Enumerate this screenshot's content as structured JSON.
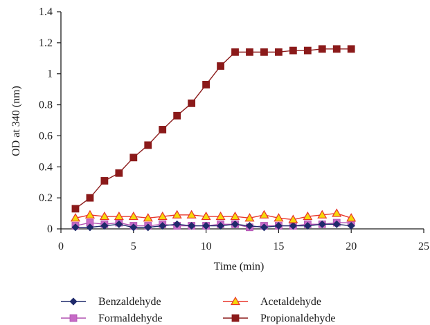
{
  "chart_data": {
    "type": "line",
    "xlabel": "Time (min)",
    "ylabel": "OD at 340 (nm)",
    "xlim": [
      0,
      25
    ],
    "ylim": [
      0,
      1.4
    ],
    "xticks": [
      0,
      5,
      10,
      15,
      20,
      25
    ],
    "yticks": [
      0,
      0.2,
      0.4,
      0.6,
      0.8,
      1,
      1.2,
      1.4
    ],
    "grid": false,
    "legend_position": "bottom",
    "x": [
      1,
      2,
      3,
      4,
      5,
      6,
      7,
      8,
      9,
      10,
      11,
      12,
      13,
      14,
      15,
      16,
      17,
      18,
      19,
      20
    ],
    "series": [
      {
        "name": "Benzaldehyde",
        "marker": "diamond",
        "line_color": "#1f2a6b",
        "marker_color": "#1f2a6b",
        "values": [
          0.01,
          0.01,
          0.02,
          0.03,
          0.01,
          0.01,
          0.02,
          0.03,
          0.02,
          0.02,
          0.02,
          0.03,
          0.02,
          0.01,
          0.02,
          0.02,
          0.02,
          0.03,
          0.03,
          0.02
        ]
      },
      {
        "name": "Acetaldehyde",
        "marker": "triangle",
        "line_color": "#e8352a",
        "marker_color": "#f5d90a",
        "marker_stroke": "#e8352a",
        "values": [
          0.07,
          0.09,
          0.08,
          0.08,
          0.08,
          0.07,
          0.08,
          0.09,
          0.09,
          0.08,
          0.08,
          0.08,
          0.07,
          0.09,
          0.07,
          0.06,
          0.08,
          0.09,
          0.1,
          0.07
        ]
      },
      {
        "name": "Formaldehyde",
        "marker": "square",
        "line_color": "#b050b0",
        "marker_color": "#c66ac6",
        "values": [
          0.02,
          0.04,
          0.03,
          0.04,
          0.02,
          0.02,
          0.03,
          0.02,
          0.02,
          0.02,
          0.03,
          0.03,
          0.01,
          0.02,
          0.02,
          0.02,
          0.03,
          0.03,
          0.04,
          0.04
        ]
      },
      {
        "name": "Propionaldehyde",
        "marker": "square",
        "line_color": "#8b1a1a",
        "marker_color": "#8b1a1a",
        "values": [
          0.13,
          0.2,
          0.31,
          0.36,
          0.46,
          0.54,
          0.64,
          0.73,
          0.81,
          0.93,
          1.05,
          1.14,
          1.14,
          1.14,
          1.14,
          1.15,
          1.15,
          1.16,
          1.16,
          1.16
        ]
      }
    ]
  }
}
